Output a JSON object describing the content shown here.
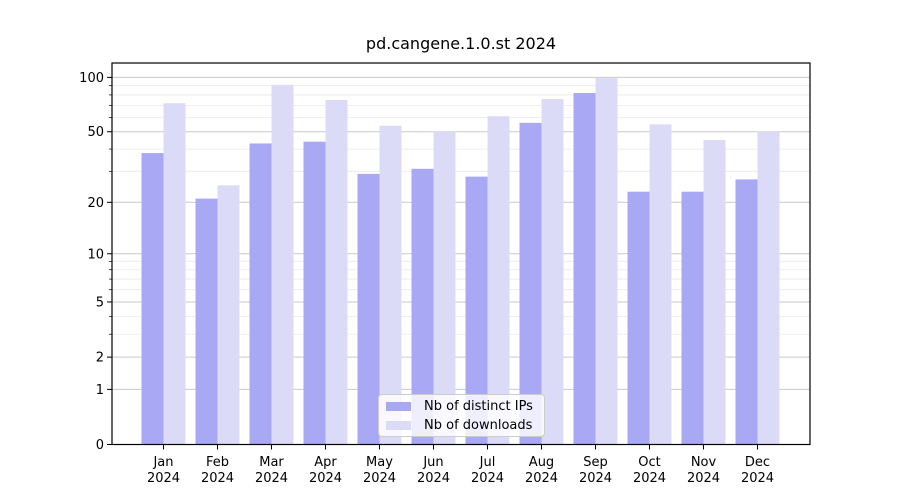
{
  "title": "pd.cangene.1.0.st 2024",
  "colors": {
    "distinct_ips": "#a8a8f5",
    "downloads": "#dbdbf8",
    "grid_major": "#c9c9c9",
    "grid_minor": "#eaeaea",
    "axis": "#000000",
    "text": "#000000",
    "legend_bg": "rgba(255,255,255,0.8)",
    "legend_border": "#cccccc"
  },
  "chart_data": {
    "type": "bar",
    "y_scale": "log1p",
    "title": "pd.cangene.1.0.st 2024",
    "year": "2024",
    "categories": [
      "Jan",
      "Feb",
      "Mar",
      "Apr",
      "May",
      "Jun",
      "Jul",
      "Aug",
      "Sep",
      "Oct",
      "Nov",
      "Dec"
    ],
    "series": [
      {
        "name": "Nb of distinct IPs",
        "values": [
          38,
          21,
          43,
          44,
          29,
          31,
          28,
          56,
          82,
          23,
          23,
          27
        ]
      },
      {
        "name": "Nb of downloads",
        "values": [
          72,
          25,
          91,
          75,
          54,
          50,
          61,
          76,
          99,
          55,
          45,
          50
        ]
      }
    ],
    "y_ticks": [
      0,
      1,
      2,
      5,
      10,
      20,
      50,
      100
    ],
    "y_minor_ticks": [
      3,
      4,
      6,
      7,
      8,
      9,
      30,
      40,
      60,
      70,
      80,
      90
    ],
    "ylim": [
      0,
      120
    ],
    "xlabel": "",
    "ylabel": "",
    "grid": true,
    "legend_position": "bottom-center"
  }
}
